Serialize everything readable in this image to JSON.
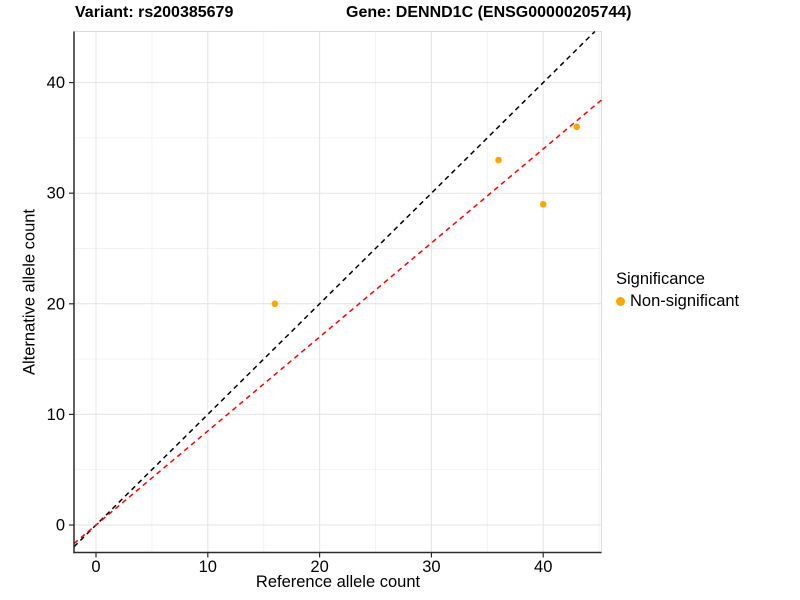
{
  "titles": {
    "variant": "Variant: rs200385679",
    "gene": "Gene: DENND1C (ENSG00000205744)"
  },
  "legend": {
    "title": "Significance",
    "items": [
      {
        "label": "Non-significant",
        "color": "#FFA500"
      }
    ]
  },
  "chart_data": {
    "type": "scatter",
    "title_left": "Variant: rs200385679",
    "title_right": "Gene: DENND1C (ENSG00000205744)",
    "xlabel": "Reference allele count",
    "ylabel": "Alternative allele count",
    "xlim": [
      -2,
      45.2
    ],
    "ylim": [
      -2.5,
      44.6
    ],
    "x_ticks": [
      0,
      10,
      20,
      30,
      40
    ],
    "y_ticks": [
      0,
      10,
      20,
      30,
      40
    ],
    "grid": true,
    "legend_position": "right",
    "series": [
      {
        "name": "Non-significant",
        "color": "#FFA500",
        "points": [
          [
            16,
            20
          ],
          [
            36,
            33
          ],
          [
            40,
            29
          ],
          [
            43,
            36
          ]
        ]
      }
    ],
    "reference_lines": [
      {
        "name": "identity-line",
        "slope": 1,
        "intercept": 0,
        "color": "#000000",
        "dashed": true
      },
      {
        "name": "fitted-ratio-line",
        "slope": 0.85,
        "intercept": 0,
        "color": "#FF0000",
        "dashed": true
      }
    ],
    "colors": {
      "point": "#FFA500",
      "grid_major": "#e4e4e4",
      "grid_minor": "#f2f2f2",
      "panel_border": "#d9d9d9",
      "axis_line": "#2b2b2b"
    }
  }
}
